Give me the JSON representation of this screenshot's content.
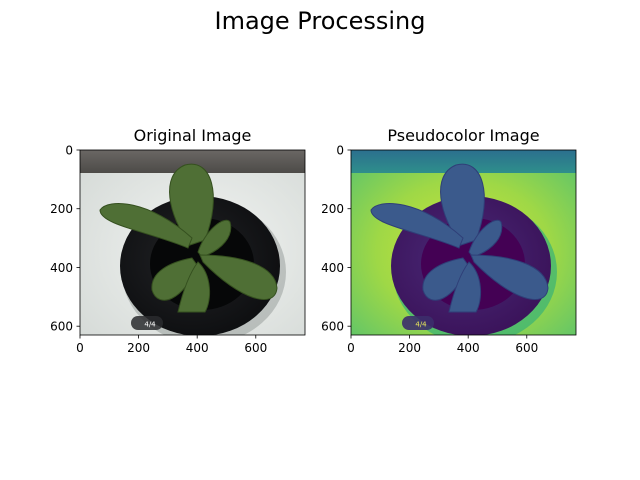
{
  "figure": {
    "title": "Image Processing"
  },
  "chart_data": [
    {
      "type": "image",
      "title": "Original Image",
      "xlabel": "",
      "ylabel": "",
      "xlim": [
        0,
        768
      ],
      "ylim": [
        630,
        0
      ],
      "xticks": [
        0,
        200,
        400,
        600
      ],
      "yticks": [
        0,
        200,
        400,
        600
      ],
      "xtick_labels": [
        "0",
        "200",
        "400",
        "600"
      ],
      "ytick_labels": [
        "0",
        "200",
        "400",
        "600"
      ],
      "grid": false,
      "colormap": "rgb",
      "badge_text": "4/4",
      "colors": {
        "leaf": "#4f6f35",
        "pot": "#141518",
        "background": "#e7ebe8",
        "wall": "#5b5956"
      }
    },
    {
      "type": "image",
      "title": "Pseudocolor Image",
      "xlabel": "",
      "ylabel": "",
      "xlim": [
        0,
        768
      ],
      "ylim": [
        630,
        0
      ],
      "xticks": [
        0,
        200,
        400,
        600
      ],
      "yticks": [
        0,
        200,
        400,
        600
      ],
      "xtick_labels": [
        "0",
        "200",
        "400",
        "600"
      ],
      "ytick_labels": [
        "0",
        "200",
        "400",
        "600"
      ],
      "grid": false,
      "colormap": "viridis",
      "badge_text": "4/4",
      "colors": {
        "leaf": "#3b5a8c",
        "pot": "#3e1a63",
        "background": "#b9de3a",
        "wall": "#2c7f8e"
      }
    }
  ]
}
